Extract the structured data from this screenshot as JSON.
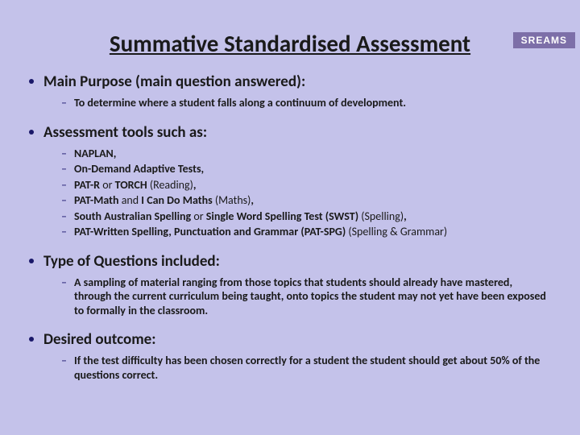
{
  "logo": "SREAMS",
  "title": "Summative Standardised Assessment",
  "sections": [
    {
      "heading": "Main Purpose (main question answered):",
      "items": [
        {
          "html": "To determine where a student falls along a continuum of development."
        }
      ]
    },
    {
      "heading": "Assessment tools such as:",
      "items": [
        {
          "html": "NAPLAN,"
        },
        {
          "html": "On-Demand Adaptive Tests,"
        },
        {
          "html": "PAT-R <span class=\"normal\">or</span> TORCH <span class=\"normal\">(Reading)</span>,"
        },
        {
          "html": "PAT-Math <span class=\"normal\">and</span> I Can Do Maths <span class=\"normal\">(Maths)</span>,"
        },
        {
          "html": "South Australian Spelling <span class=\"normal\">or</span> Single Word Spelling Test (SWST) <span class=\"normal\">(Spelling)</span>,"
        },
        {
          "html": "PAT-Written Spelling, Punctuation and Grammar (PAT-SPG) <span class=\"normal\">(Spelling & Grammar)</span>"
        }
      ]
    },
    {
      "heading": "Type of Questions included:",
      "items": [
        {
          "html": "A sampling of material ranging from those topics that students should already have mastered, through the current curriculum being taught, onto topics the student may not yet have been exposed to formally in the classroom."
        }
      ]
    },
    {
      "heading": "Desired outcome:",
      "items": [
        {
          "html": "If the test difficulty has been chosen correctly for a student the student should get about 50% of the questions correct."
        }
      ]
    }
  ]
}
